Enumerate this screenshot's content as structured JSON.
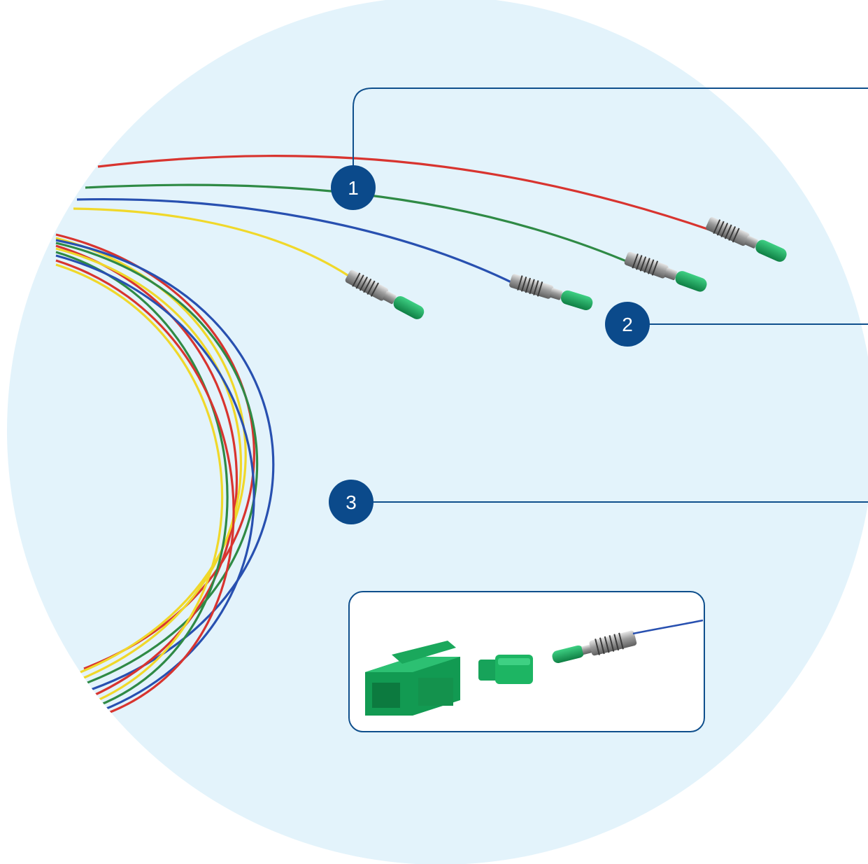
{
  "colors": {
    "background_circle": "#e3f3fb",
    "callout_line": "#0f4f8c",
    "marker_fill": "#0b4a8b",
    "marker_text": "#ffffff",
    "fiber_red": "#d8342f",
    "fiber_green": "#2f8a45",
    "fiber_blue": "#2850b0",
    "fiber_yellow": "#f0d82a",
    "connector_green": "#17a35a",
    "ferrule_steel": "#a9a9a9",
    "inset_border": "#0f4f8c"
  },
  "markers": [
    {
      "id": 1,
      "label": "1"
    },
    {
      "id": 2,
      "label": "2"
    },
    {
      "id": 3,
      "label": "3"
    }
  ],
  "icons": {
    "fiber_pigtails": "fiber-pigtail-bundle-icon",
    "connector_parts": "lc-connector-parts-icon"
  }
}
